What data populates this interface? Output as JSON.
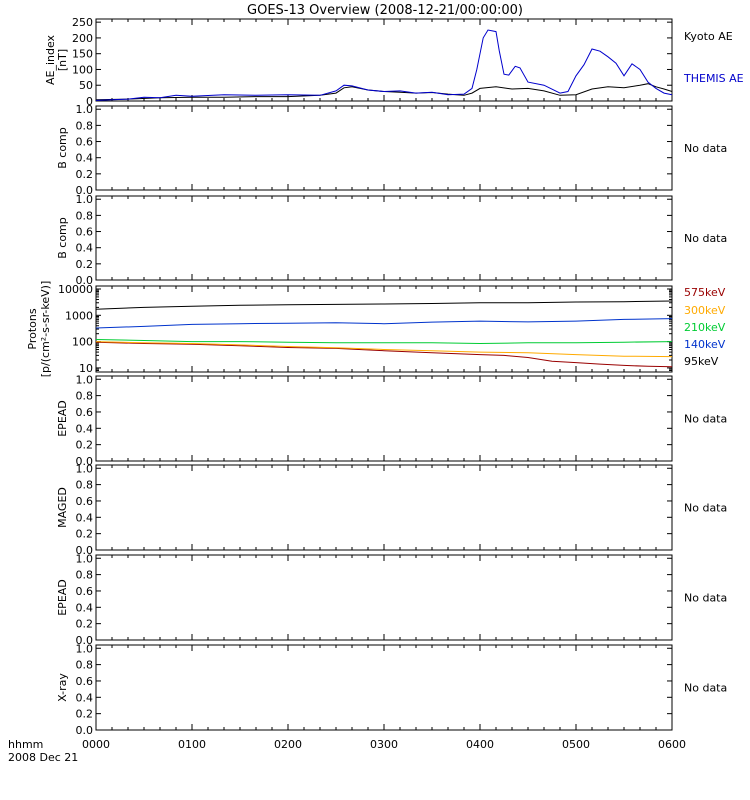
{
  "title": "GOES-13 Overview (2008-12-21/00:00:00)",
  "bottom_left_label": "hhmm",
  "date_label": "2008 Dec 21",
  "colors": {
    "black": "#000000",
    "blue": "#0000cc",
    "red": "#990000",
    "orange": "#ffaa00",
    "green": "#00cc33",
    "blue_protons": "#0033cc"
  },
  "chart_data": [
    {
      "id": "ae",
      "type": "line",
      "ylabel": "AE_index [nT]",
      "yticks": [
        "0",
        "50",
        "100",
        "150",
        "200",
        "250"
      ],
      "ylim": [
        0,
        260
      ],
      "xlim": [
        0,
        360
      ],
      "series": [
        {
          "name": "Kyoto AE",
          "color": "#000000",
          "x": [
            0,
            20,
            40,
            60,
            80,
            100,
            120,
            140,
            150,
            155,
            160,
            170,
            180,
            190,
            200,
            210,
            220,
            225,
            230,
            235,
            240,
            250,
            260,
            270,
            280,
            290,
            300,
            310,
            320,
            330,
            340,
            345,
            350,
            355,
            360
          ],
          "y": [
            4,
            6,
            10,
            12,
            12,
            14,
            14,
            18,
            25,
            42,
            45,
            35,
            30,
            28,
            25,
            27,
            22,
            20,
            18,
            25,
            40,
            45,
            38,
            40,
            32,
            18,
            20,
            38,
            45,
            42,
            50,
            55,
            45,
            38,
            30
          ]
        },
        {
          "name": "THEMIS AE",
          "color": "#0000cc",
          "x": [
            0,
            20,
            30,
            40,
            50,
            60,
            80,
            100,
            120,
            140,
            150,
            155,
            160,
            170,
            180,
            190,
            200,
            210,
            220,
            230,
            235,
            238,
            240,
            242,
            245,
            250,
            252,
            255,
            258,
            262,
            265,
            270,
            280,
            290,
            295,
            300,
            305,
            310,
            315,
            320,
            325,
            330,
            335,
            340,
            345,
            350,
            355,
            360
          ],
          "y": [
            2,
            6,
            12,
            10,
            18,
            15,
            20,
            18,
            20,
            18,
            32,
            50,
            48,
            35,
            30,
            32,
            25,
            28,
            20,
            22,
            40,
            100,
            150,
            200,
            225,
            220,
            160,
            85,
            82,
            110,
            105,
            60,
            50,
            25,
            30,
            80,
            115,
            165,
            158,
            140,
            120,
            80,
            118,
            100,
            60,
            40,
            25,
            20
          ]
        }
      ]
    },
    {
      "id": "bcomp1",
      "type": "line",
      "ylabel": "B comp",
      "yticks": [
        "0.0",
        "0.2",
        "0.4",
        "0.6",
        "0.8",
        "1.0"
      ],
      "ylim": [
        0,
        1.04
      ],
      "note": "No data"
    },
    {
      "id": "bcomp2",
      "type": "line",
      "ylabel": "B comp",
      "yticks": [
        "0.0",
        "0.2",
        "0.4",
        "0.6",
        "0.8",
        "1.0"
      ],
      "ylim": [
        0,
        1.04
      ],
      "note": "No data"
    },
    {
      "id": "protons",
      "type": "line",
      "yscale": "log",
      "ylabel": "Protons [p/(cm²-s-sr-keV)]",
      "yticks": [
        "10",
        "100",
        "1000",
        "10000"
      ],
      "ylim": [
        7,
        13000
      ],
      "xlim": [
        0,
        360
      ],
      "series": [
        {
          "name": "575keV",
          "color": "#990000",
          "x": [
            0,
            30,
            60,
            90,
            120,
            150,
            180,
            210,
            240,
            255,
            270,
            285,
            300,
            315,
            330,
            345,
            360
          ],
          "y": [
            95,
            85,
            80,
            70,
            60,
            55,
            45,
            38,
            32,
            30,
            25,
            18,
            16,
            14,
            12.5,
            11.5,
            11
          ]
        },
        {
          "name": "300keV",
          "color": "#ffaa00",
          "x": [
            0,
            30,
            60,
            90,
            120,
            150,
            180,
            210,
            240,
            270,
            300,
            330,
            360
          ],
          "y": [
            100,
            90,
            85,
            75,
            65,
            58,
            50,
            45,
            40,
            38,
            32,
            28,
            27
          ]
        },
        {
          "name": "210keV",
          "color": "#00cc33",
          "x": [
            0,
            30,
            60,
            90,
            120,
            150,
            180,
            210,
            240,
            270,
            300,
            330,
            360
          ],
          "y": [
            120,
            110,
            100,
            100,
            95,
            90,
            90,
            90,
            85,
            90,
            90,
            95,
            100
          ]
        },
        {
          "name": "140keV",
          "color": "#0033cc",
          "x": [
            0,
            30,
            60,
            90,
            120,
            150,
            180,
            210,
            240,
            270,
            300,
            330,
            360
          ],
          "y": [
            330,
            380,
            450,
            480,
            500,
            520,
            480,
            550,
            600,
            560,
            600,
            700,
            750
          ]
        },
        {
          "name": "95keV",
          "color": "#000000",
          "x": [
            0,
            30,
            60,
            90,
            120,
            150,
            180,
            210,
            240,
            270,
            300,
            330,
            360
          ],
          "y": [
            1700,
            2000,
            2200,
            2400,
            2500,
            2600,
            2700,
            2800,
            3000,
            3000,
            3200,
            3300,
            3500
          ]
        }
      ]
    },
    {
      "id": "epead1",
      "type": "line",
      "ylabel": "EPEAD",
      "yticks": [
        "0.0",
        "0.2",
        "0.4",
        "0.6",
        "0.8",
        "1.0"
      ],
      "ylim": [
        0,
        1.04
      ],
      "note": "No data"
    },
    {
      "id": "maged",
      "type": "line",
      "ylabel": "MAGED",
      "yticks": [
        "0.0",
        "0.2",
        "0.4",
        "0.6",
        "0.8",
        "1.0"
      ],
      "ylim": [
        0,
        1.04
      ],
      "note": "No data"
    },
    {
      "id": "epead2",
      "type": "line",
      "ylabel": "EPEAD",
      "yticks": [
        "0.0",
        "0.2",
        "0.4",
        "0.6",
        "0.8",
        "1.0"
      ],
      "ylim": [
        0,
        1.04
      ],
      "note": "No data"
    },
    {
      "id": "xray",
      "type": "line",
      "ylabel": "X-ray",
      "yticks": [
        "0.0",
        "0.2",
        "0.4",
        "0.6",
        "0.8",
        "1.0"
      ],
      "ylim": [
        0,
        1.04
      ],
      "note": "No data"
    }
  ],
  "x_axis": {
    "ticks": [
      "0000",
      "0100",
      "0200",
      "0300",
      "0400",
      "0500",
      "0600"
    ],
    "tick_minutes": [
      0,
      60,
      120,
      180,
      240,
      300,
      360
    ]
  }
}
